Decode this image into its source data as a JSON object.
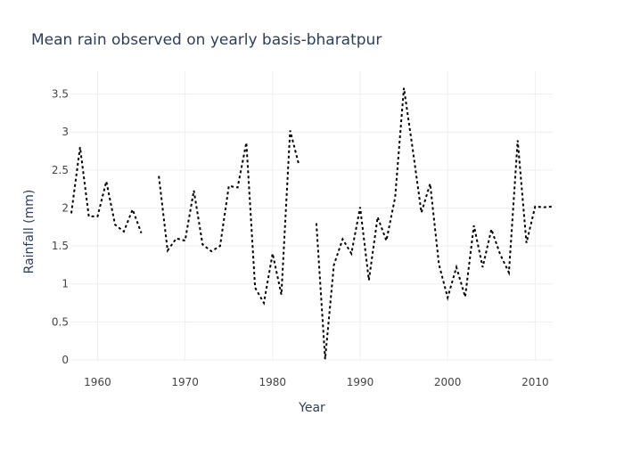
{
  "chart_data": {
    "type": "line",
    "title": "Mean rain observed on yearly basis-bharatpur",
    "xlabel": "Year",
    "ylabel": "Rainfall (mm)",
    "xlim": [
      1957,
      2012
    ],
    "ylim": [
      0,
      3.8
    ],
    "x_ticks": [
      1960,
      1970,
      1980,
      1990,
      2000,
      2010
    ],
    "y_ticks": [
      0,
      0.5,
      1,
      1.5,
      2,
      2.5,
      3,
      3.5
    ],
    "x_tick_labels": [
      "1960",
      "1970",
      "1980",
      "1990",
      "2000",
      "2010"
    ],
    "y_tick_labels": [
      "0",
      "0.5",
      "1",
      "1.5",
      "2",
      "2.5",
      "3",
      "3.5"
    ],
    "grid": true,
    "line_style": "dotted",
    "line_color": "#000000",
    "series": [
      {
        "x": [
          1957,
          1958,
          1959,
          1960,
          1961,
          1962,
          1963,
          1964,
          1965,
          1966,
          1967,
          1968,
          1969,
          1970,
          1971,
          1972,
          1973,
          1974,
          1975,
          1976,
          1977,
          1978,
          1979,
          1980,
          1981,
          1982,
          1983,
          1984,
          1985,
          1986,
          1987,
          1988,
          1989,
          1990,
          1991,
          1992,
          1993,
          1994,
          1995,
          1996,
          1997,
          1998,
          1999,
          2000,
          2001,
          2002,
          2003,
          2004,
          2005,
          2006,
          2007,
          2008,
          2009,
          2010,
          2011,
          2012
        ],
        "y": [
          1.93,
          2.8,
          1.89,
          1.89,
          2.35,
          1.78,
          1.69,
          1.98,
          1.67,
          null,
          2.42,
          1.44,
          1.6,
          1.57,
          2.23,
          1.52,
          1.43,
          1.5,
          2.29,
          2.27,
          2.86,
          0.95,
          0.75,
          1.4,
          0.86,
          3.02,
          2.57,
          null,
          1.8,
          0.01,
          1.25,
          1.59,
          1.4,
          2.01,
          1.05,
          1.88,
          1.57,
          2.14,
          3.58,
          2.78,
          1.94,
          2.32,
          1.26,
          0.82,
          1.22,
          0.83,
          1.77,
          1.22,
          1.72,
          1.39,
          1.15,
          2.89,
          1.54,
          2.02,
          2.01,
          2.02
        ]
      }
    ]
  }
}
